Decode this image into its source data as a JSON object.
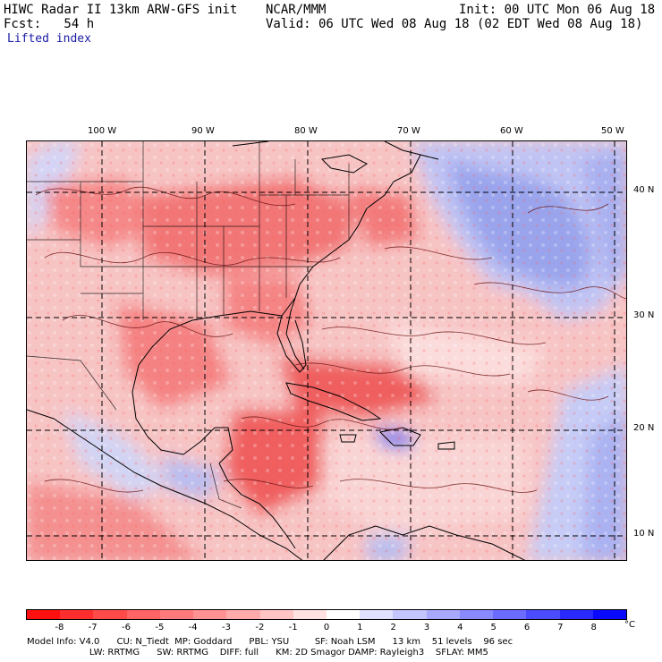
{
  "header": {
    "title": "HIWC Radar II 13km ARW-GFS init",
    "source": "NCAR/MMM",
    "init": "Init: 00 UTC Mon 06 Aug 18",
    "fcst": "Fcst:   54 h",
    "valid": "Valid: 06 UTC Wed 08 Aug 18 (02 EDT Wed 08 Aug 18)",
    "field": "Lifted index"
  },
  "map": {
    "lon_labels": [
      "100 W",
      "90 W",
      "80 W",
      "70 W",
      "60 W",
      "50 W"
    ],
    "lat_labels": [
      "40 N",
      "30 N",
      "20 N",
      "10 N"
    ]
  },
  "colorbar": {
    "labels": [
      "-8",
      "-7",
      "-6",
      "-5",
      "-4",
      "-3",
      "-2",
      "-1",
      "0",
      "1",
      "2",
      "3",
      "4",
      "5",
      "6",
      "7",
      "8"
    ],
    "unit": "°C",
    "colors": [
      "#ff1010",
      "#ff2e2e",
      "#ff4a4a",
      "#ff6363",
      "#ff7a7a",
      "#ff9292",
      "#ffabab",
      "#ffc4c4",
      "#ffe1e1",
      "#ffffff",
      "#e1e1ff",
      "#c4c4ff",
      "#a8a8ff",
      "#8a8aff",
      "#6b6bff",
      "#4c4cff",
      "#2a2aff",
      "#0a0aff"
    ]
  },
  "model_info": {
    "line1": "Model Info: V4.0      CU: N_Tiedt  MP: Goddard      PBL: YSU         SF: Noah LSM      13 km    51 levels    96 sec",
    "line2": "                      LW: RRTMG      SW: RRTMG    DIFF: full      KM: 2D Smagor DAMP: Rayleigh3    SFLAY: MM5"
  }
}
